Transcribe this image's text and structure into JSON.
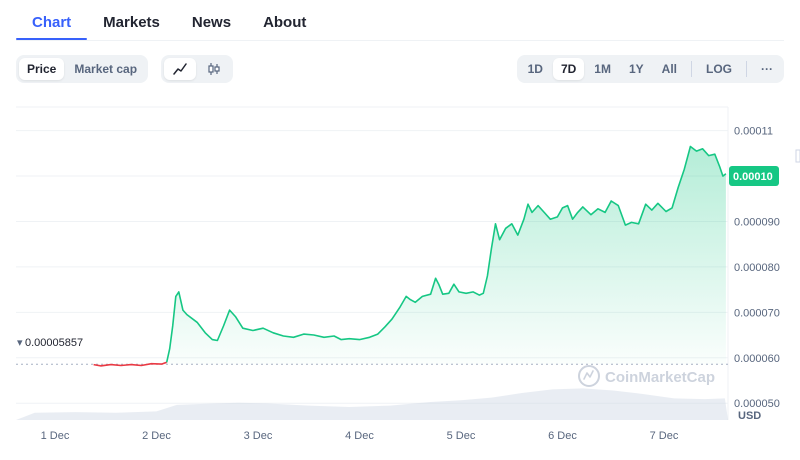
{
  "nav": {
    "tabs": [
      {
        "label": "Chart",
        "active": true
      },
      {
        "label": "Markets",
        "active": false
      },
      {
        "label": "News",
        "active": false
      },
      {
        "label": "About",
        "active": false
      }
    ]
  },
  "toolbar": {
    "metric_toggle": [
      {
        "label": "Price",
        "selected": true
      },
      {
        "label": "Market cap",
        "selected": false
      }
    ],
    "chart_style_icons": [
      {
        "icon": "line-chart-icon",
        "selected": true
      },
      {
        "icon": "candlestick-icon",
        "selected": false
      }
    ],
    "range_options": [
      {
        "label": "1D",
        "selected": false
      },
      {
        "label": "7D",
        "selected": true
      },
      {
        "label": "1M",
        "selected": false
      },
      {
        "label": "1Y",
        "selected": false
      },
      {
        "label": "All",
        "selected": false
      }
    ],
    "log_label": "LOG",
    "more_label": "···"
  },
  "colors": {
    "accent": "#3861fb",
    "up": "#16c784",
    "down": "#ea3943"
  },
  "watermark": "CoinMarketCap",
  "currency_label": "USD",
  "chart_data": {
    "type": "line",
    "x_ticks": [
      "1 Dec",
      "2 Dec",
      "3 Dec",
      "4 Dec",
      "5 Dec",
      "6 Dec",
      "7 Dec"
    ],
    "y_ticks": [
      "0.000050",
      "0.000060",
      "0.000070",
      "0.000080",
      "0.000090",
      "0.00010",
      "0.00011"
    ],
    "ylim": [
      4.63e-05,
      0.0001152
    ],
    "grid": true,
    "baseline": {
      "value": 5.857e-05,
      "label": "0.00005857"
    },
    "current_price": {
      "value": 0.0001,
      "label": "0.00010"
    },
    "series": [
      {
        "values_up_to_day": [
          [
            1.38,
            5.85e-05
          ],
          [
            1.45,
            5.82e-05
          ],
          [
            1.55,
            5.85e-05
          ],
          [
            1.65,
            5.83e-05
          ],
          [
            1.75,
            5.85e-05
          ],
          [
            1.85,
            5.83e-05
          ],
          [
            1.95,
            5.87e-05
          ],
          [
            2.05,
            5.86e-05
          ],
          [
            2.1,
            5.9e-05
          ],
          [
            2.13,
            6.2e-05
          ],
          [
            2.16,
            6.7e-05
          ],
          [
            2.19,
            7.35e-05
          ],
          [
            2.22,
            7.45e-05
          ],
          [
            2.26,
            7.05e-05
          ],
          [
            2.3,
            6.95e-05
          ],
          [
            2.4,
            6.78e-05
          ],
          [
            2.48,
            6.55e-05
          ],
          [
            2.55,
            6.4e-05
          ],
          [
            2.6,
            6.38e-05
          ],
          [
            2.66,
            6.7e-05
          ],
          [
            2.72,
            7.05e-05
          ],
          [
            2.78,
            6.9e-05
          ],
          [
            2.85,
            6.65e-05
          ],
          [
            2.95,
            6.6e-05
          ],
          [
            3.05,
            6.65e-05
          ],
          [
            3.15,
            6.55e-05
          ],
          [
            3.25,
            6.48e-05
          ],
          [
            3.35,
            6.45e-05
          ],
          [
            3.45,
            6.52e-05
          ],
          [
            3.55,
            6.5e-05
          ],
          [
            3.65,
            6.45e-05
          ],
          [
            3.75,
            6.48e-05
          ],
          [
            3.82,
            6.4e-05
          ],
          [
            3.9,
            6.42e-05
          ],
          [
            4.0,
            6.4e-05
          ],
          [
            4.1,
            6.45e-05
          ],
          [
            4.18,
            6.52e-05
          ],
          [
            4.25,
            6.68e-05
          ],
          [
            4.32,
            6.85e-05
          ],
          [
            4.4,
            7.12e-05
          ],
          [
            4.46,
            7.35e-05
          ],
          [
            4.5,
            7.28e-05
          ],
          [
            4.55,
            7.22e-05
          ],
          [
            4.62,
            7.35e-05
          ],
          [
            4.7,
            7.4e-05
          ],
          [
            4.75,
            7.75e-05
          ],
          [
            4.78,
            7.62e-05
          ],
          [
            4.82,
            7.4e-05
          ],
          [
            4.88,
            7.42e-05
          ],
          [
            4.93,
            7.62e-05
          ],
          [
            4.98,
            7.45e-05
          ],
          [
            5.05,
            7.42e-05
          ],
          [
            5.12,
            7.45e-05
          ],
          [
            5.18,
            7.38e-05
          ],
          [
            5.22,
            7.42e-05
          ],
          [
            5.26,
            7.8e-05
          ],
          [
            5.3,
            8.4e-05
          ],
          [
            5.34,
            8.95e-05
          ],
          [
            5.38,
            8.6e-05
          ],
          [
            5.44,
            8.85e-05
          ],
          [
            5.5,
            8.95e-05
          ],
          [
            5.56,
            8.7e-05
          ],
          [
            5.62,
            9.05e-05
          ],
          [
            5.66,
            9.38e-05
          ],
          [
            5.7,
            9.2e-05
          ],
          [
            5.76,
            9.35e-05
          ],
          [
            5.82,
            9.2e-05
          ],
          [
            5.88,
            9.05e-05
          ],
          [
            5.95,
            9.1e-05
          ],
          [
            6.0,
            9.3e-05
          ],
          [
            6.05,
            9.35e-05
          ],
          [
            6.1,
            9.05e-05
          ],
          [
            6.15,
            9.2e-05
          ],
          [
            6.2,
            9.32e-05
          ],
          [
            6.28,
            9.15e-05
          ],
          [
            6.35,
            9.28e-05
          ],
          [
            6.42,
            9.2e-05
          ],
          [
            6.48,
            9.45e-05
          ],
          [
            6.55,
            9.35e-05
          ],
          [
            6.62,
            8.92e-05
          ],
          [
            6.68,
            8.98e-05
          ],
          [
            6.75,
            8.95e-05
          ],
          [
            6.82,
            9.38e-05
          ],
          [
            6.88,
            9.25e-05
          ],
          [
            6.94,
            9.4e-05
          ],
          [
            7.02,
            9.22e-05
          ],
          [
            7.08,
            9.3e-05
          ],
          [
            7.14,
            9.75e-05
          ],
          [
            7.2,
            0.0001015
          ],
          [
            7.26,
            0.0001065
          ],
          [
            7.32,
            0.0001055
          ],
          [
            7.38,
            0.000106
          ],
          [
            7.44,
            0.0001045
          ],
          [
            7.5,
            0.0001048
          ],
          [
            7.55,
            0.000102
          ],
          [
            7.58,
            0.0001
          ],
          [
            7.61,
            0.0001005
          ]
        ]
      }
    ],
    "volume_series": [
      [
        0.8,
        0.2
      ],
      [
        1.2,
        0.22
      ],
      [
        1.6,
        0.2
      ],
      [
        2.0,
        0.24
      ],
      [
        2.2,
        0.42
      ],
      [
        2.5,
        0.45
      ],
      [
        2.8,
        0.48
      ],
      [
        3.1,
        0.46
      ],
      [
        3.5,
        0.4
      ],
      [
        3.9,
        0.36
      ],
      [
        4.3,
        0.4
      ],
      [
        4.7,
        0.5
      ],
      [
        5.0,
        0.55
      ],
      [
        5.3,
        0.62
      ],
      [
        5.6,
        0.75
      ],
      [
        5.9,
        0.85
      ],
      [
        6.2,
        0.88
      ],
      [
        6.5,
        0.82
      ],
      [
        6.8,
        0.72
      ],
      [
        7.1,
        0.6
      ],
      [
        7.4,
        0.58
      ],
      [
        7.6,
        0.6
      ]
    ]
  }
}
